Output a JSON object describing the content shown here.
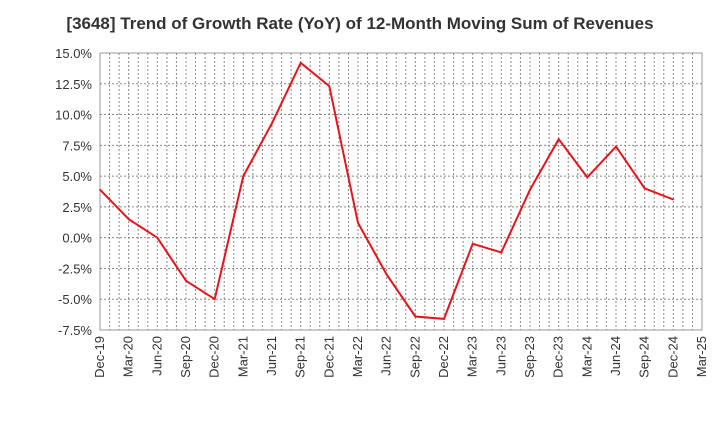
{
  "chart_data": {
    "type": "line",
    "title": "[3648]  Trend of Growth Rate (YoY) of 12-Month Moving Sum of Revenues",
    "xlabel": "",
    "ylabel": "",
    "x": [
      "Dec-19",
      "Mar-20",
      "Jun-20",
      "Sep-20",
      "Dec-20",
      "Mar-21",
      "Jun-21",
      "Sep-21",
      "Dec-21",
      "Mar-22",
      "Jun-22",
      "Sep-22",
      "Dec-22",
      "Mar-23",
      "Jun-23",
      "Sep-23",
      "Dec-23",
      "Mar-24",
      "Jun-24",
      "Sep-24",
      "Dec-24",
      "Mar-25"
    ],
    "series": [
      {
        "color": "#e8141b",
        "values": [
          3.9,
          1.5,
          0.0,
          -3.5,
          -5.0,
          5.0,
          9.3,
          14.2,
          12.3,
          1.2,
          -3.0,
          -6.4,
          -6.6,
          -0.5,
          -1.2,
          3.9,
          8.0,
          4.9,
          7.4,
          4.0,
          3.1,
          null
        ]
      }
    ],
    "ylim": [
      -7.5,
      15.0
    ],
    "yticks": [
      "15.0%",
      "12.5%",
      "10.0%",
      "7.5%",
      "5.0%",
      "2.5%",
      "0.0%",
      "-2.5%",
      "-5.0%",
      "-7.5%"
    ],
    "grid": true
  }
}
